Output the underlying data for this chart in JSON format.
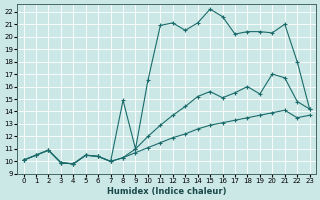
{
  "xlabel": "Humidex (Indice chaleur)",
  "bg_color": "#cce8e6",
  "grid_color": "#ffffff",
  "line_color": "#1a6b6b",
  "xlim": [
    -0.5,
    23.5
  ],
  "ylim": [
    9,
    22.6
  ],
  "xticks": [
    0,
    1,
    2,
    3,
    4,
    5,
    6,
    7,
    8,
    9,
    10,
    11,
    12,
    13,
    14,
    15,
    16,
    17,
    18,
    19,
    20,
    21,
    22,
    23
  ],
  "yticks": [
    9,
    10,
    11,
    12,
    13,
    14,
    15,
    16,
    17,
    18,
    19,
    20,
    21,
    22
  ],
  "line1_x": [
    0,
    1,
    2,
    3,
    4,
    5,
    6,
    7,
    8,
    9,
    10,
    11,
    12,
    13,
    14,
    15,
    16,
    17,
    18,
    19,
    20,
    21,
    22,
    23
  ],
  "line1_y": [
    10.1,
    10.5,
    10.9,
    9.9,
    9.8,
    10.5,
    10.4,
    10.0,
    10.3,
    10.7,
    11.1,
    11.5,
    11.9,
    12.2,
    12.6,
    12.9,
    13.1,
    13.3,
    13.5,
    13.7,
    13.9,
    14.1,
    13.5,
    13.7
  ],
  "line2_x": [
    0,
    1,
    2,
    3,
    4,
    5,
    6,
    7,
    8,
    9,
    10,
    11,
    12,
    13,
    14,
    15,
    16,
    17,
    18,
    19,
    20,
    21,
    22,
    23
  ],
  "line2_y": [
    10.1,
    10.5,
    10.9,
    9.9,
    9.8,
    10.5,
    10.4,
    10.0,
    10.3,
    11.0,
    12.0,
    12.9,
    13.7,
    14.4,
    15.2,
    15.6,
    15.1,
    15.5,
    16.0,
    15.4,
    17.0,
    16.7,
    14.8,
    14.2
  ],
  "line3_x": [
    0,
    1,
    2,
    3,
    4,
    5,
    6,
    7,
    8,
    9,
    10,
    11,
    12,
    13,
    14,
    15,
    16,
    17,
    18,
    19,
    20,
    21,
    22,
    23
  ],
  "line3_y": [
    10.1,
    10.5,
    10.9,
    9.9,
    9.8,
    10.5,
    10.4,
    10.0,
    14.9,
    11.0,
    16.5,
    20.9,
    21.1,
    20.5,
    21.1,
    22.2,
    21.6,
    20.2,
    20.4,
    20.4,
    20.3,
    21.0,
    18.0,
    14.2
  ]
}
